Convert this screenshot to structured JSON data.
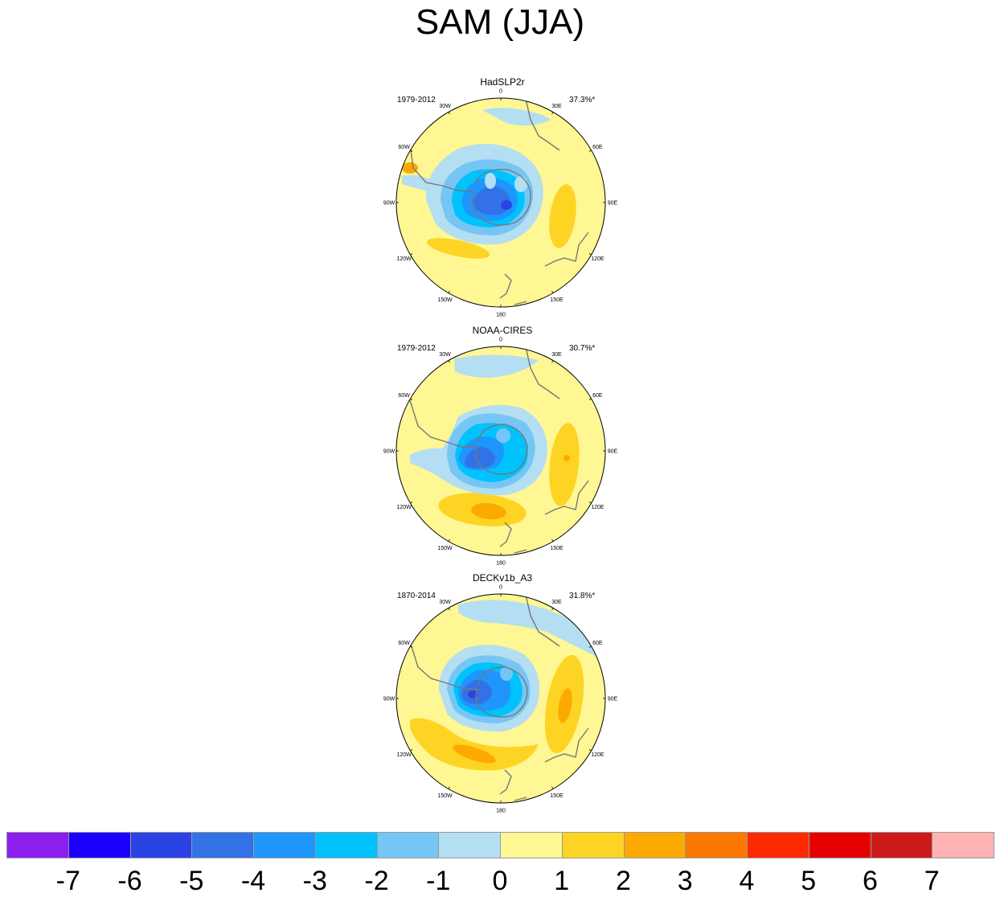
{
  "title": "SAM (JJA)",
  "panels": [
    {
      "title": "HadSLP2r",
      "period": "1979-2012",
      "percent": "37.3%*"
    },
    {
      "title": "NOAA-CIRES",
      "period": "1979-2012",
      "percent": "30.7%*"
    },
    {
      "title": "DECKv1b_A3",
      "period": "1870-2014",
      "percent": "31.8%*"
    }
  ],
  "longitude_labels": [
    "0",
    "30E",
    "60E",
    "90E",
    "120E",
    "150E",
    "180",
    "150W",
    "120W",
    "90W",
    "60W",
    "30W"
  ],
  "colorbar": {
    "colors": [
      "#8a1fee",
      "#1d00fc",
      "#2b42e4",
      "#3272e6",
      "#1e96fb",
      "#00c2fd",
      "#75c6f4",
      "#b4def2",
      "#fef793",
      "#fed424",
      "#fdaa00",
      "#fd7800",
      "#fd2a00",
      "#e50000",
      "#cc1a1a",
      "#ffb3b3"
    ],
    "labels": [
      "-7",
      "-6",
      "-5",
      "-4",
      "-3",
      "-2",
      "-1",
      "0",
      "1",
      "2",
      "3",
      "4",
      "5",
      "6",
      "7"
    ]
  },
  "colors": {
    "background_field": "#fef793",
    "coastline": "#777777"
  }
}
